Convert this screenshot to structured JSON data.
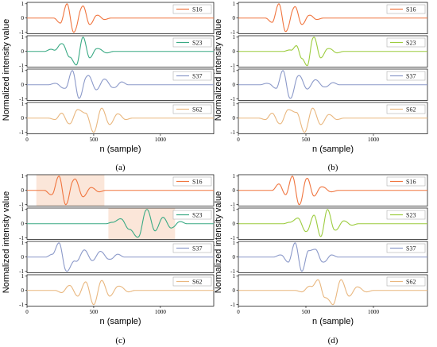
{
  "colors": {
    "S16": "#f0753f",
    "S23_a": "#3aaa84",
    "S23_b": "#9ccc3e",
    "S37": "#8b99c9",
    "S62": "#e9b77f",
    "highlight": "#fbe6d9",
    "frame": "#000000",
    "legend_frame": "#b0b0b0"
  },
  "chart_data": [
    {
      "panel": "a",
      "type": "line",
      "title": "",
      "ylabel": "Normalized intensity value",
      "xlabel": "n (sample)",
      "panel_label": "(a)",
      "xlim": [
        0,
        1400
      ],
      "xticks": [
        "0",
        "500",
        "1000"
      ],
      "xtick_values": [
        0,
        500,
        1000
      ],
      "series": [
        {
          "name": "S16",
          "color_key": "S16",
          "ylim": [
            -1.1,
            1.1
          ],
          "yticks": [
            "1",
            "0",
            "-1"
          ],
          "peaks": [
            [
              250,
              -0.35
            ],
            [
              300,
              1.0
            ],
            [
              350,
              -1.0
            ],
            [
              420,
              0.85
            ],
            [
              470,
              -0.45
            ],
            [
              530,
              0.2
            ],
            [
              580,
              -0.1
            ]
          ]
        },
        {
          "name": "S23",
          "color_key": "S23_a",
          "ylim": [
            -1.1,
            1.1
          ],
          "yticks": [
            "1",
            "0",
            "-1"
          ],
          "peaks": [
            [
              180,
              0.15
            ],
            [
              260,
              0.55
            ],
            [
              320,
              -0.4
            ],
            [
              370,
              -0.95
            ],
            [
              420,
              1.0
            ],
            [
              470,
              -0.45
            ],
            [
              530,
              0.2
            ],
            [
              600,
              -0.1
            ]
          ]
        },
        {
          "name": "S37",
          "color_key": "S37",
          "ylim": [
            -1.1,
            1.1
          ],
          "yticks": [
            "1",
            "0",
            "-1"
          ],
          "peaks": [
            [
              210,
              0.1
            ],
            [
              280,
              -0.25
            ],
            [
              340,
              1.0
            ],
            [
              390,
              -0.95
            ],
            [
              460,
              0.65
            ],
            [
              520,
              -0.35
            ],
            [
              580,
              0.4
            ],
            [
              650,
              -0.2
            ],
            [
              710,
              0.2
            ]
          ]
        },
        {
          "name": "S62",
          "color_key": "S62",
          "ylim": [
            -1.1,
            1.1
          ],
          "yticks": [
            "1",
            "0",
            "-1"
          ],
          "peaks": [
            [
              210,
              -0.1
            ],
            [
              260,
              0.35
            ],
            [
              320,
              -0.4
            ],
            [
              380,
              0.6
            ],
            [
              440,
              0.35
            ],
            [
              500,
              -1.0
            ],
            [
              560,
              0.7
            ],
            [
              620,
              -0.45
            ],
            [
              680,
              0.3
            ],
            [
              740,
              -0.1
            ]
          ]
        }
      ]
    },
    {
      "panel": "b",
      "type": "line",
      "title": "",
      "ylabel": "Normalized intensity value",
      "xlabel": "n (sample)",
      "panel_label": "(b)",
      "xlim": [
        0,
        1400
      ],
      "xticks": [
        "0",
        "500",
        "1000"
      ],
      "xtick_values": [
        0,
        500,
        1000
      ],
      "series": [
        {
          "name": "S16",
          "color_key": "S16",
          "ylim": [
            -1.1,
            1.1
          ],
          "yticks": [
            "1",
            "0",
            "-1"
          ],
          "peaks": [
            [
              250,
              -0.3
            ],
            [
              300,
              1.0
            ],
            [
              350,
              -0.95
            ],
            [
              420,
              0.8
            ],
            [
              470,
              -0.45
            ],
            [
              530,
              0.2
            ],
            [
              580,
              -0.1
            ]
          ]
        },
        {
          "name": "S23",
          "color_key": "S23_b",
          "ylim": [
            -1.1,
            1.1
          ],
          "yticks": [
            "1",
            "0",
            "-1"
          ],
          "peaks": [
            [
              380,
              0.1
            ],
            [
              430,
              0.4
            ],
            [
              470,
              -0.5
            ],
            [
              510,
              -1.0
            ],
            [
              560,
              1.0
            ],
            [
              610,
              -0.45
            ],
            [
              670,
              0.2
            ],
            [
              730,
              -0.1
            ]
          ]
        },
        {
          "name": "S37",
          "color_key": "S37",
          "ylim": [
            -1.1,
            1.1
          ],
          "yticks": [
            "1",
            "0",
            "-1"
          ],
          "peaks": [
            [
              210,
              0.1
            ],
            [
              280,
              -0.25
            ],
            [
              330,
              1.0
            ],
            [
              385,
              -0.95
            ],
            [
              450,
              0.65
            ],
            [
              510,
              -0.3
            ],
            [
              570,
              0.35
            ],
            [
              640,
              -0.15
            ],
            [
              700,
              0.15
            ]
          ]
        },
        {
          "name": "S62",
          "color_key": "S62",
          "ylim": [
            -1.1,
            1.1
          ],
          "yticks": [
            "1",
            "0",
            "-1"
          ],
          "peaks": [
            [
              200,
              -0.1
            ],
            [
              250,
              0.35
            ],
            [
              310,
              -0.4
            ],
            [
              370,
              0.6
            ],
            [
              430,
              0.4
            ],
            [
              490,
              -1.0
            ],
            [
              550,
              0.7
            ],
            [
              610,
              -0.45
            ],
            [
              670,
              0.25
            ],
            [
              730,
              -0.1
            ]
          ]
        }
      ]
    },
    {
      "panel": "c",
      "type": "line",
      "title": "",
      "ylabel": "Normalized intensity value",
      "xlabel": "n (sample)",
      "panel_label": "(c)",
      "xlim": [
        0,
        1400
      ],
      "xticks": [
        "0",
        "500",
        "1000"
      ],
      "xtick_values": [
        0,
        500,
        1000
      ],
      "series": [
        {
          "name": "S16",
          "color_key": "S16",
          "ylim": [
            -1.1,
            1.1
          ],
          "yticks": [
            "1",
            "0",
            "-1"
          ],
          "highlight_x": [
            70,
            580
          ],
          "peaks": [
            [
              180,
              -0.3
            ],
            [
              240,
              1.0
            ],
            [
              290,
              -1.0
            ],
            [
              360,
              0.8
            ],
            [
              420,
              -0.45
            ],
            [
              480,
              0.2
            ],
            [
              540,
              -0.1
            ]
          ]
        },
        {
          "name": "S23",
          "color_key": "S23_a",
          "ylim": [
            -1.1,
            1.1
          ],
          "yticks": [
            "1",
            "0",
            "-1"
          ],
          "highlight_x": [
            610,
            1110
          ],
          "peaks": [
            [
              640,
              0.1
            ],
            [
              700,
              0.35
            ],
            [
              770,
              -0.4
            ],
            [
              830,
              -0.95
            ],
            [
              900,
              1.0
            ],
            [
              960,
              -0.5
            ],
            [
              1020,
              0.45
            ],
            [
              1080,
              -0.3
            ],
            [
              1150,
              0.15
            ]
          ]
        },
        {
          "name": "S37",
          "color_key": "S37",
          "ylim": [
            -1.1,
            1.1
          ],
          "yticks": [
            "1",
            "0",
            "-1"
          ],
          "peaks": [
            [
              190,
              0.2
            ],
            [
              240,
              1.0
            ],
            [
              300,
              -1.0
            ],
            [
              370,
              -0.3
            ],
            [
              430,
              0.5
            ],
            [
              490,
              -0.25
            ],
            [
              550,
              0.4
            ],
            [
              620,
              -0.15
            ],
            [
              680,
              0.2
            ]
          ]
        },
        {
          "name": "S62",
          "color_key": "S62",
          "ylim": [
            -1.1,
            1.1
          ],
          "yticks": [
            "1",
            "0",
            "-1"
          ],
          "peaks": [
            [
              260,
              -0.15
            ],
            [
              320,
              0.35
            ],
            [
              380,
              -0.4
            ],
            [
              440,
              0.6
            ],
            [
              500,
              -1.0
            ],
            [
              560,
              0.7
            ],
            [
              620,
              -0.4
            ],
            [
              690,
              0.3
            ],
            [
              760,
              -0.1
            ]
          ]
        }
      ]
    },
    {
      "panel": "d",
      "type": "line",
      "title": "",
      "ylabel": "Normalized intensity value",
      "xlabel": "n (sample)",
      "panel_label": "(d)",
      "xlim": [
        0,
        1400
      ],
      "xticks": [
        "0",
        "500",
        "1000"
      ],
      "xtick_values": [
        0,
        500,
        1000
      ],
      "series": [
        {
          "name": "S16",
          "color_key": "S16",
          "ylim": [
            -1.1,
            1.1
          ],
          "yticks": [
            "1",
            "0",
            "-1"
          ],
          "peaks": [
            [
              300,
              0.45
            ],
            [
              350,
              -0.3
            ],
            [
              400,
              1.0
            ],
            [
              450,
              -1.0
            ],
            [
              510,
              0.85
            ],
            [
              560,
              -0.4
            ],
            [
              620,
              0.25
            ],
            [
              690,
              -0.1
            ]
          ]
        },
        {
          "name": "S23",
          "color_key": "S23_b",
          "ylim": [
            -1.1,
            1.1
          ],
          "yticks": [
            "1",
            "0",
            "-1"
          ],
          "peaks": [
            [
              380,
              0.1
            ],
            [
              440,
              0.4
            ],
            [
              500,
              -0.55
            ],
            [
              560,
              0.6
            ],
            [
              610,
              -0.9
            ],
            [
              660,
              1.0
            ],
            [
              720,
              -0.45
            ],
            [
              780,
              0.2
            ],
            [
              840,
              -0.1
            ]
          ]
        },
        {
          "name": "S37",
          "color_key": "S37",
          "ylim": [
            -1.1,
            1.1
          ],
          "yticks": [
            "1",
            "0",
            "-1"
          ],
          "peaks": [
            [
              310,
              0.15
            ],
            [
              370,
              -0.35
            ],
            [
              420,
              1.0
            ],
            [
              470,
              -1.0
            ],
            [
              520,
              0.45
            ],
            [
              570,
              0.55
            ],
            [
              630,
              -0.35
            ],
            [
              690,
              0.15
            ]
          ]
        },
        {
          "name": "S62",
          "color_key": "S62",
          "ylim": [
            -1.1,
            1.1
          ],
          "yticks": [
            "1",
            "0",
            "-1"
          ],
          "peaks": [
            [
              470,
              -0.1
            ],
            [
              530,
              0.3
            ],
            [
              590,
              0.75
            ],
            [
              640,
              -0.5
            ],
            [
              700,
              -1.0
            ],
            [
              760,
              0.75
            ],
            [
              820,
              -0.4
            ],
            [
              880,
              0.25
            ],
            [
              950,
              -0.1
            ]
          ]
        }
      ]
    }
  ]
}
